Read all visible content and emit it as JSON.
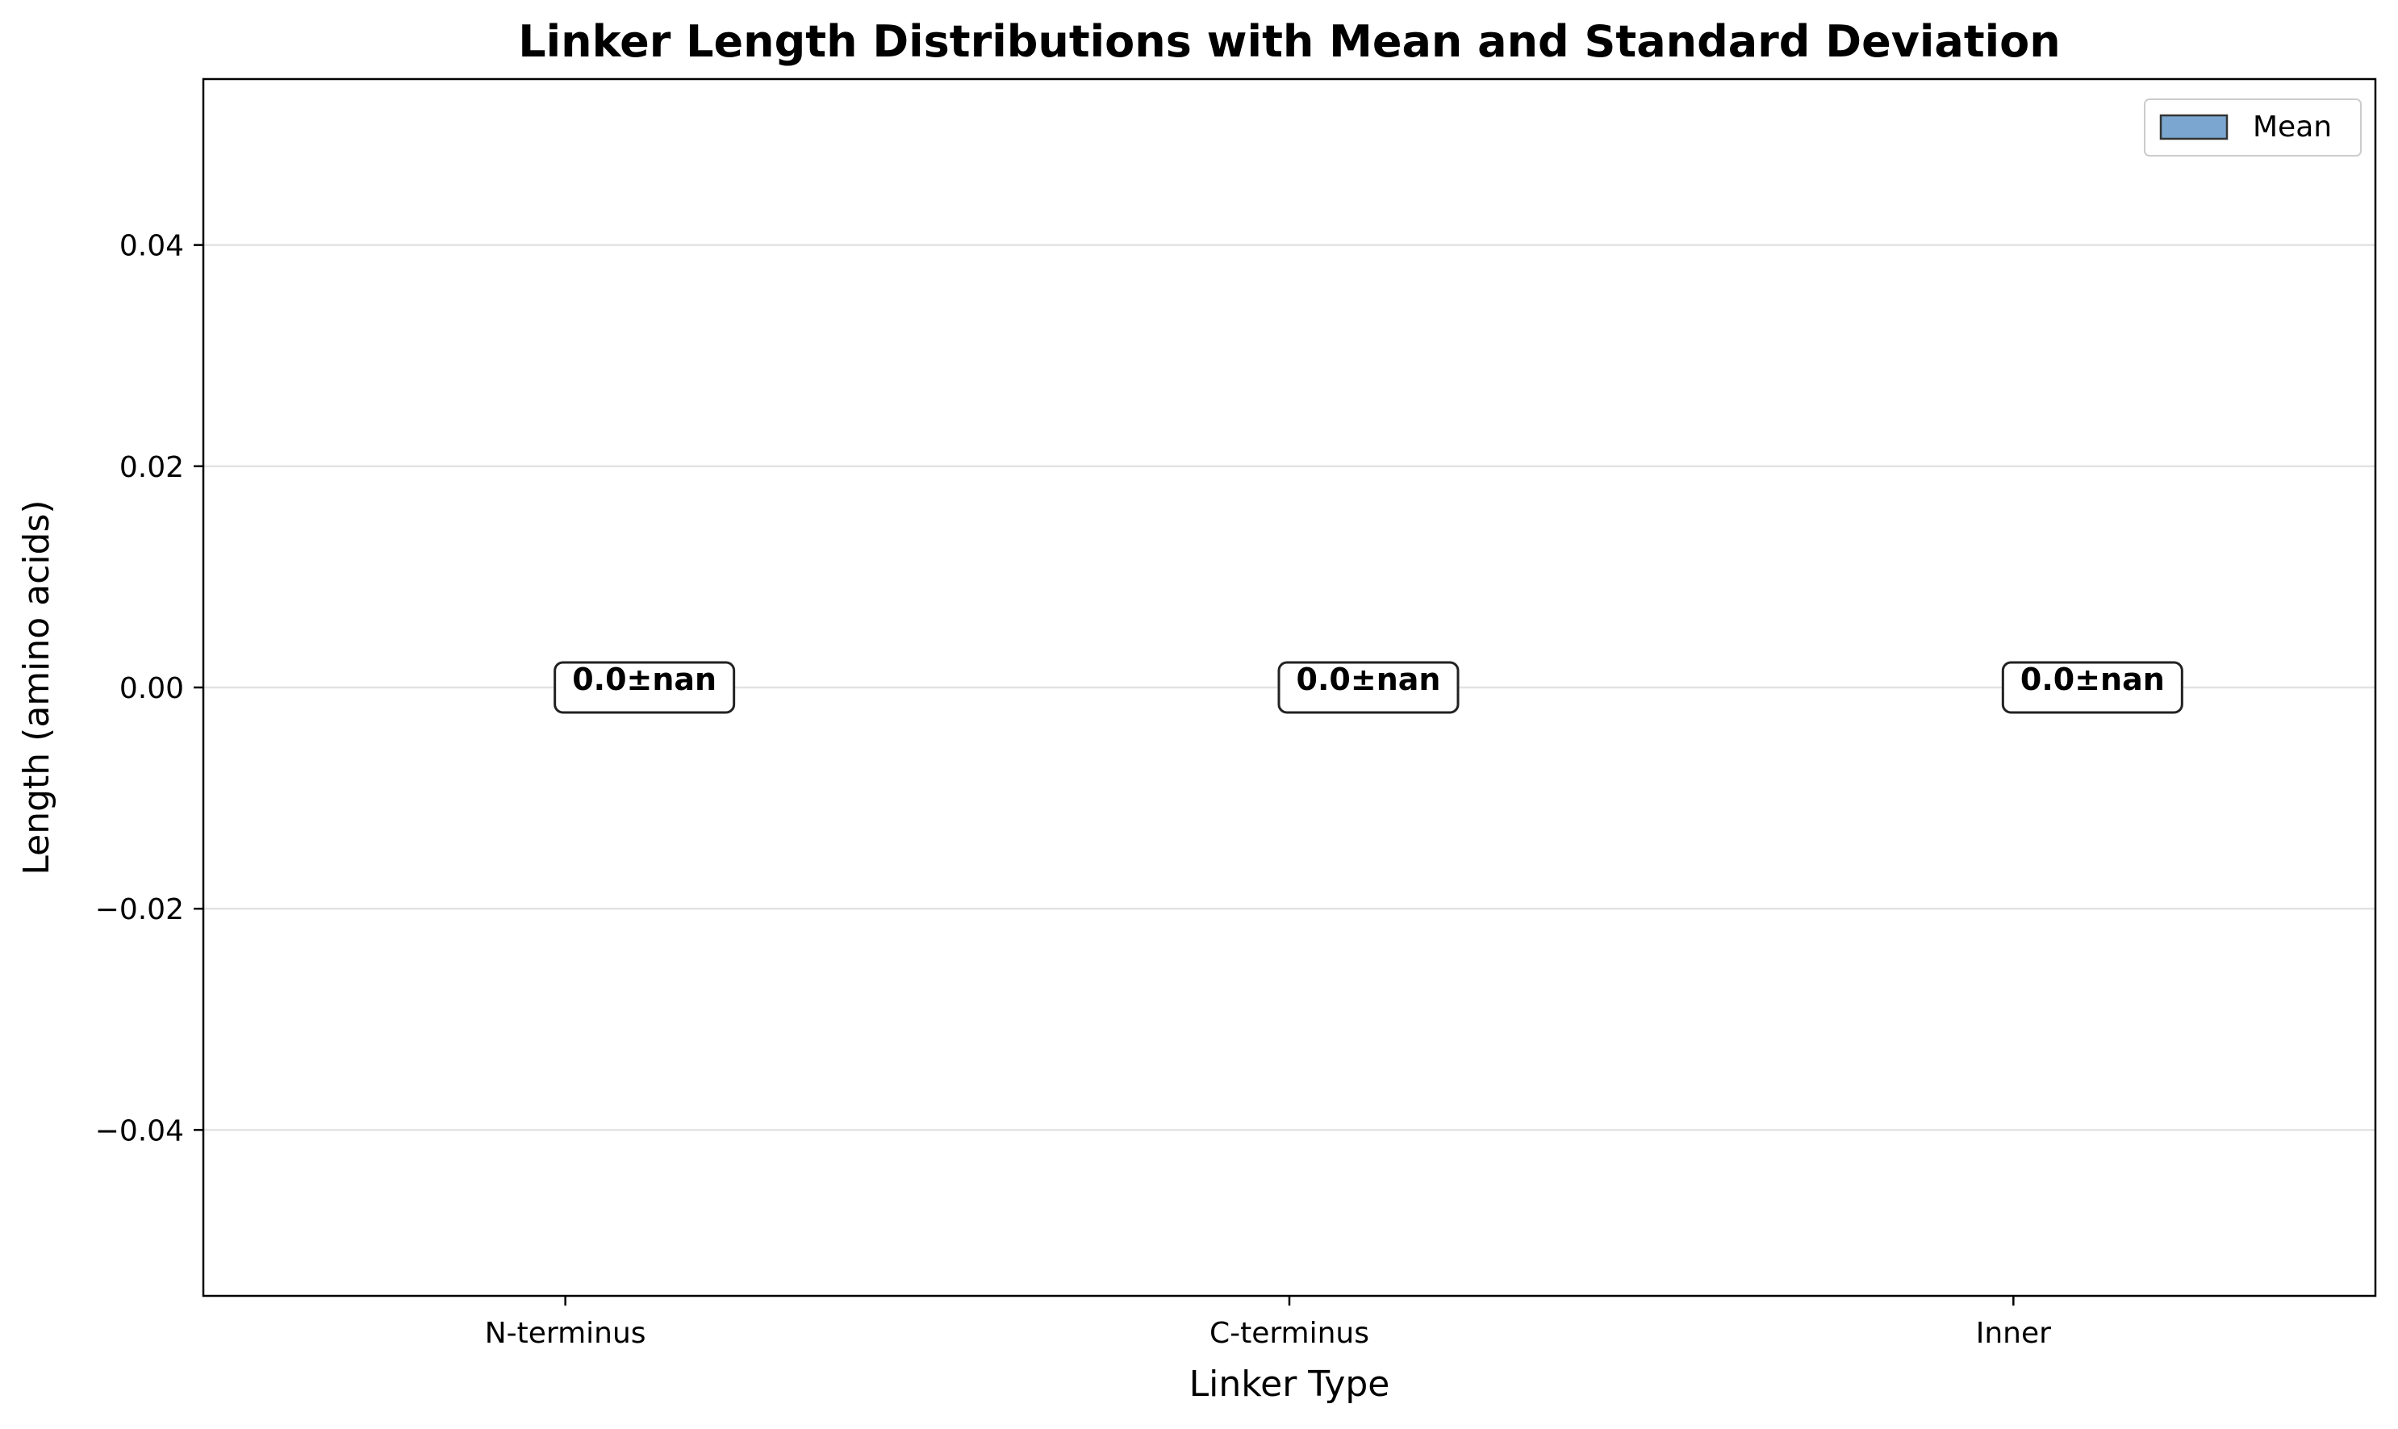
{
  "chart_data": {
    "type": "bar",
    "title": "Linker Length Distributions with Mean and Standard Deviation",
    "xlabel": "Linker Type",
    "ylabel": "Length (amino acids)",
    "categories": [
      "N-terminus",
      "C-terminus",
      "Inner"
    ],
    "series": [
      {
        "name": "Mean",
        "values": [
          0.0,
          0.0,
          0.0
        ],
        "std": [
          "nan",
          "nan",
          "nan"
        ],
        "color": "#7aa6cf",
        "edge_color": "#333333"
      }
    ],
    "value_labels": [
      "0.0±nan",
      "0.0±nan",
      "0.0±nan"
    ],
    "yticks": [
      -0.04,
      -0.02,
      0.0,
      0.02,
      0.04
    ],
    "ytick_labels": [
      "−0.04",
      "−0.02",
      "0.00",
      "0.02",
      "0.04"
    ],
    "ylim": [
      -0.055,
      0.055
    ],
    "grid": "horizontal",
    "legend_position": "top-right"
  }
}
